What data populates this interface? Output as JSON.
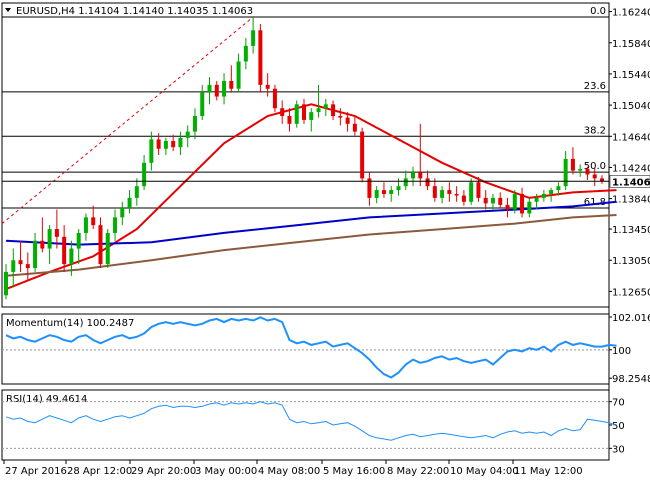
{
  "chart_data": [
    {
      "type": "candlestick",
      "panel": "price",
      "title": "EURUSD,H4  1.14104 1.14140 1.14035 1.14063",
      "symbol": "EURUSD",
      "timeframe": "H4",
      "ohlc_header": {
        "open": 1.14104,
        "high": 1.1414,
        "low": 1.14035,
        "close": 1.14063
      },
      "ylim": [
        1.1245,
        1.1635
      ],
      "y_ticks": [
        "1.16240",
        "1.15840",
        "1.15440",
        "1.15040",
        "1.14640",
        "1.14240",
        "1.13840",
        "1.13450",
        "1.13050",
        "1.12650"
      ],
      "y_tick_values": [
        1.1624,
        1.1584,
        1.1544,
        1.1504,
        1.1464,
        1.1424,
        1.1384,
        1.1345,
        1.1305,
        1.1265
      ],
      "last_price_label": "1.14063",
      "last_price": 1.14063,
      "fib_levels": [
        {
          "label": "0.0",
          "price": 1.1617
        },
        {
          "label": "23.6",
          "price": 1.1521
        },
        {
          "label": "38.2",
          "price": 1.1464
        },
        {
          "label": "50.0",
          "price": 1.1418
        },
        {
          "label": "61.8",
          "price": 1.1372
        }
      ],
      "x_labels": [
        "27 Apr 2016",
        "28 Apr 12:00",
        "29 Apr 20:00",
        "3 May 00:00",
        "4 May 08:00",
        "5 May 16:00",
        "8 May 22:00",
        "10 May 04:00",
        "11 May 12:00"
      ],
      "candles": [
        [
          1.126,
          1.13,
          1.1255,
          1.129
        ],
        [
          1.129,
          1.132,
          1.127,
          1.1305
        ],
        [
          1.1305,
          1.133,
          1.129,
          1.13
        ],
        [
          1.13,
          1.1315,
          1.128,
          1.1295
        ],
        [
          1.1295,
          1.134,
          1.129,
          1.133
        ],
        [
          1.133,
          1.136,
          1.1315,
          1.132
        ],
        [
          1.132,
          1.135,
          1.13,
          1.1345
        ],
        [
          1.1345,
          1.137,
          1.132,
          1.1335
        ],
        [
          1.1335,
          1.135,
          1.129,
          1.13
        ],
        [
          1.13,
          1.133,
          1.1285,
          1.132
        ],
        [
          1.132,
          1.1345,
          1.13,
          1.134
        ],
        [
          1.134,
          1.1365,
          1.133,
          1.136
        ],
        [
          1.136,
          1.1375,
          1.1345,
          1.135
        ],
        [
          1.135,
          1.136,
          1.1295,
          1.13
        ],
        [
          1.13,
          1.1345,
          1.1295,
          1.134
        ],
        [
          1.134,
          1.137,
          1.133,
          1.136
        ],
        [
          1.136,
          1.138,
          1.135,
          1.1372
        ],
        [
          1.1372,
          1.1395,
          1.1365,
          1.1385
        ],
        [
          1.1385,
          1.141,
          1.1375,
          1.14
        ],
        [
          1.14,
          1.144,
          1.1395,
          1.143
        ],
        [
          1.143,
          1.147,
          1.142,
          1.146
        ],
        [
          1.146,
          1.1468,
          1.144,
          1.1448
        ],
        [
          1.1448,
          1.1462,
          1.144,
          1.1458
        ],
        [
          1.1458,
          1.1466,
          1.1445,
          1.145
        ],
        [
          1.145,
          1.147,
          1.144,
          1.1462
        ],
        [
          1.1462,
          1.1478,
          1.145,
          1.147
        ],
        [
          1.147,
          1.15,
          1.146,
          1.149
        ],
        [
          1.149,
          1.153,
          1.1485,
          1.152
        ],
        [
          1.152,
          1.154,
          1.1505,
          1.153
        ],
        [
          1.153,
          1.1535,
          1.151,
          1.1515
        ],
        [
          1.1515,
          1.1545,
          1.1505,
          1.1535
        ],
        [
          1.1535,
          1.1555,
          1.152,
          1.1525
        ],
        [
          1.1525,
          1.157,
          1.152,
          1.156
        ],
        [
          1.156,
          1.159,
          1.155,
          1.158
        ],
        [
          1.158,
          1.1617,
          1.157,
          1.16
        ],
        [
          1.16,
          1.1608,
          1.152,
          1.153
        ],
        [
          1.153,
          1.1545,
          1.1515,
          1.1525
        ],
        [
          1.1525,
          1.153,
          1.1495,
          1.15
        ],
        [
          1.15,
          1.151,
          1.148,
          1.149
        ],
        [
          1.149,
          1.15,
          1.147,
          1.148
        ],
        [
          1.148,
          1.151,
          1.1475,
          1.1505
        ],
        [
          1.1505,
          1.1512,
          1.148,
          1.1485
        ],
        [
          1.1485,
          1.15,
          1.147,
          1.1495
        ],
        [
          1.1495,
          1.153,
          1.1488,
          1.15
        ],
        [
          1.15,
          1.1512,
          1.149,
          1.1505
        ],
        [
          1.1505,
          1.151,
          1.1485,
          1.149
        ],
        [
          1.149,
          1.15,
          1.1478,
          1.1488
        ],
        [
          1.1488,
          1.1495,
          1.147,
          1.148
        ],
        [
          1.148,
          1.149,
          1.1465,
          1.147
        ],
        [
          1.147,
          1.1475,
          1.1405,
          1.141
        ],
        [
          1.141,
          1.1418,
          1.1375,
          1.1385
        ],
        [
          1.1385,
          1.14,
          1.1378,
          1.1395
        ],
        [
          1.1395,
          1.1405,
          1.1385,
          1.139
        ],
        [
          1.139,
          1.14,
          1.138,
          1.1395
        ],
        [
          1.1395,
          1.141,
          1.1388,
          1.14
        ],
        [
          1.14,
          1.142,
          1.1395,
          1.141
        ],
        [
          1.141,
          1.1425,
          1.14,
          1.1418
        ],
        [
          1.1418,
          1.148,
          1.14,
          1.141
        ],
        [
          1.141,
          1.142,
          1.1395,
          1.14
        ],
        [
          1.14,
          1.141,
          1.138,
          1.1385
        ],
        [
          1.1385,
          1.14,
          1.1378,
          1.1395
        ],
        [
          1.1395,
          1.1405,
          1.138,
          1.139
        ],
        [
          1.139,
          1.14,
          1.138,
          1.1388
        ],
        [
          1.1388,
          1.1395,
          1.1375,
          1.138
        ],
        [
          1.138,
          1.141,
          1.1376,
          1.1405
        ],
        [
          1.1405,
          1.1412,
          1.138,
          1.1385
        ],
        [
          1.1385,
          1.1395,
          1.137,
          1.1378
        ],
        [
          1.1378,
          1.139,
          1.137,
          1.1385
        ],
        [
          1.1385,
          1.1392,
          1.1372,
          1.1376
        ],
        [
          1.1376,
          1.1385,
          1.136,
          1.137
        ],
        [
          1.137,
          1.1395,
          1.1365,
          1.139
        ],
        [
          1.139,
          1.1398,
          1.136,
          1.1365
        ],
        [
          1.1365,
          1.1385,
          1.136,
          1.138
        ],
        [
          1.138,
          1.139,
          1.137,
          1.1385
        ],
        [
          1.1385,
          1.1395,
          1.138,
          1.139
        ],
        [
          1.139,
          1.1398,
          1.138,
          1.1395
        ],
        [
          1.1395,
          1.1405,
          1.1388,
          1.14
        ],
        [
          1.14,
          1.1445,
          1.1395,
          1.1435
        ],
        [
          1.1435,
          1.145,
          1.1415,
          1.142
        ],
        [
          1.142,
          1.1428,
          1.1412,
          1.1422
        ],
        [
          1.1422,
          1.1425,
          1.1408,
          1.1415
        ],
        [
          1.1415,
          1.1424,
          1.14,
          1.141
        ],
        [
          1.141,
          1.1414,
          1.1403,
          1.14063
        ]
      ],
      "series": [
        {
          "name": "",
          "color": "#e60000",
          "points": [
            [
              0,
              1.1268
            ],
            [
              6,
              1.129
            ],
            [
              12,
              1.131
            ],
            [
              18,
              1.1345
            ],
            [
              24,
              1.14
            ],
            [
              30,
              1.1455
            ],
            [
              36,
              1.149
            ],
            [
              42,
              1.1505
            ],
            [
              48,
              1.149
            ],
            [
              54,
              1.146
            ],
            [
              60,
              1.143
            ],
            [
              66,
              1.1405
            ],
            [
              72,
              1.1385
            ],
            [
              78,
              1.1392
            ],
            [
              84,
              1.1395
            ]
          ]
        },
        {
          "name": "",
          "color": "#0000c8",
          "points": [
            [
              0,
              1.133
            ],
            [
              10,
              1.1325
            ],
            [
              20,
              1.1328
            ],
            [
              30,
              1.134
            ],
            [
              40,
              1.135
            ],
            [
              50,
              1.136
            ],
            [
              60,
              1.1365
            ],
            [
              70,
              1.137
            ],
            [
              78,
              1.1374
            ],
            [
              84,
              1.138
            ]
          ]
        },
        {
          "name": "",
          "color": "#8b5a3c",
          "points": [
            [
              0,
              1.1285
            ],
            [
              10,
              1.1293
            ],
            [
              20,
              1.1305
            ],
            [
              30,
              1.1318
            ],
            [
              40,
              1.1328
            ],
            [
              50,
              1.1338
            ],
            [
              60,
              1.1345
            ],
            [
              70,
              1.1352
            ],
            [
              78,
              1.136
            ],
            [
              84,
              1.1363
            ]
          ]
        }
      ]
    },
    {
      "type": "line",
      "panel": "momentum",
      "title": "Momentum(14) 100.2487",
      "ylim": [
        97.9,
        102.2
      ],
      "y_ticks": [
        "102.0164",
        "100",
        "98.2548"
      ],
      "y_tick_values": [
        102.0164,
        100,
        98.2548
      ],
      "reference_line": 100,
      "color": "#1e90ff",
      "values": [
        100.9,
        100.7,
        100.8,
        100.6,
        100.5,
        100.7,
        100.9,
        100.8,
        100.6,
        100.5,
        100.8,
        100.9,
        100.6,
        100.4,
        100.6,
        100.8,
        100.9,
        100.7,
        100.8,
        101.0,
        101.4,
        101.6,
        101.7,
        101.6,
        101.7,
        101.6,
        101.5,
        101.6,
        101.8,
        101.9,
        101.7,
        101.9,
        101.8,
        101.9,
        101.8,
        102.0,
        101.8,
        101.9,
        101.7,
        100.6,
        100.4,
        100.5,
        100.3,
        100.4,
        100.5,
        100.2,
        100.3,
        100.4,
        100.1,
        99.8,
        99.4,
        98.9,
        98.5,
        98.3,
        98.6,
        99.1,
        99.4,
        99.2,
        99.3,
        99.5,
        99.6,
        99.4,
        99.5,
        99.3,
        99.2,
        99.3,
        99.4,
        99.1,
        99.5,
        99.9,
        100.0,
        99.9,
        100.1,
        100.0,
        100.2,
        99.9,
        100.3,
        100.5,
        100.3,
        100.4,
        100.3,
        100.2,
        100.2,
        100.3,
        100.2487
      ]
    },
    {
      "type": "line",
      "panel": "rsi",
      "title": "RSI(14) 49.4614",
      "ylim": [
        20,
        80
      ],
      "y_ticks": [
        "70",
        "50",
        "30"
      ],
      "y_tick_values": [
        70,
        50,
        30
      ],
      "color": "#1e90ff",
      "values": [
        57,
        55,
        56,
        53,
        52,
        55,
        58,
        56,
        54,
        52,
        56,
        58,
        55,
        53,
        55,
        57,
        58,
        56,
        58,
        60,
        64,
        66,
        67,
        65,
        66,
        66,
        65,
        66,
        68,
        69,
        67,
        69,
        68,
        69,
        68,
        70,
        68,
        69,
        67,
        55,
        52,
        53,
        51,
        52,
        53,
        50,
        51,
        52,
        49,
        45,
        41,
        39,
        38,
        37,
        39,
        41,
        42,
        40,
        41,
        42,
        43,
        42,
        41,
        40,
        39,
        40,
        41,
        39,
        42,
        44,
        45,
        43,
        44,
        43,
        44,
        41,
        45,
        47,
        45,
        46,
        55,
        54,
        53,
        52,
        49.4614
      ]
    }
  ]
}
